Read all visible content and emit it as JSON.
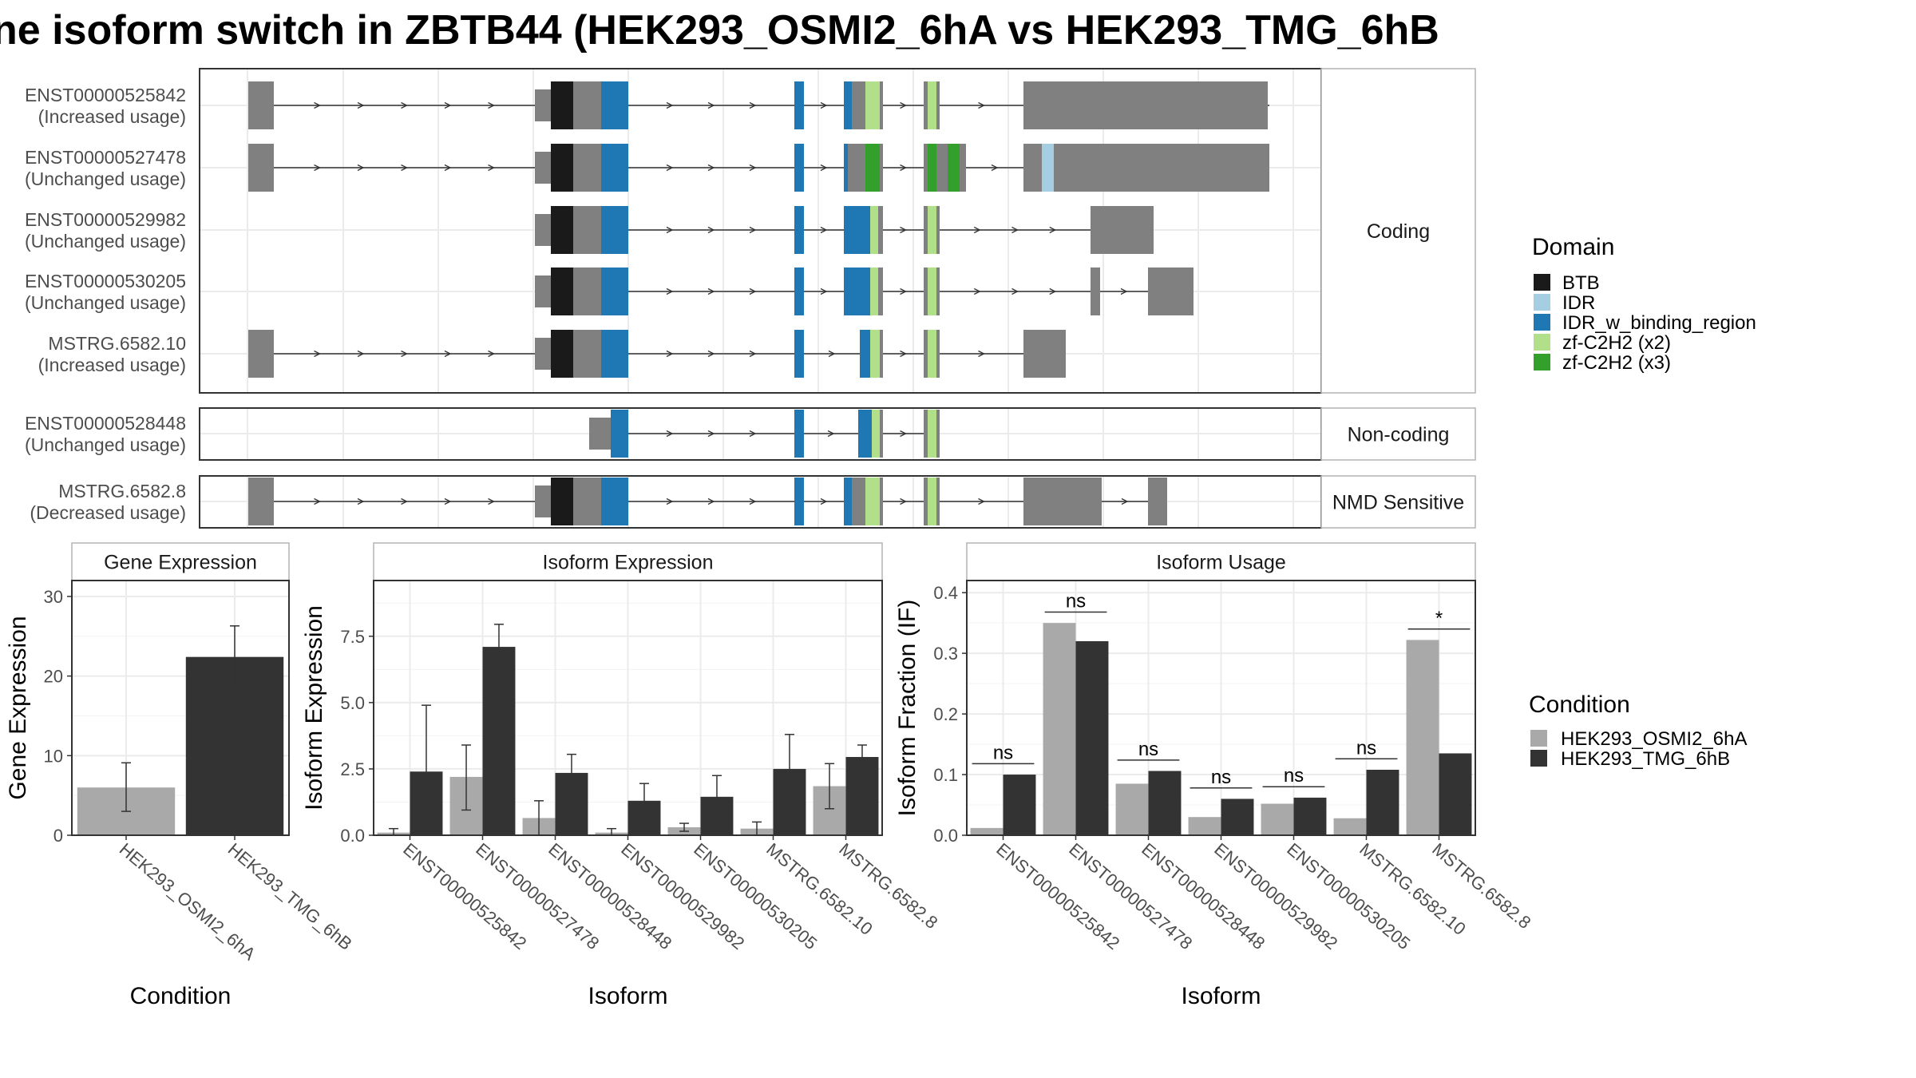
{
  "title": "ne isoform switch in ZBTB44 (HEK293_OSMI2_6hA vs HEK293_TMG_6hB",
  "colors": {
    "BTB": "#1a1a1a",
    "IDR": "#a6cee3",
    "IDR_w_binding_region": "#1f78b4",
    "zf-C2H2 (x2)": "#b2df8a",
    "zf-C2H2 (x3)": "#33a02c",
    "exon": "#808080",
    "cond_a": "#a9a9a9",
    "cond_b": "#333333"
  },
  "structure": {
    "groups": [
      {
        "label": "Coding",
        "transcripts": [
          {
            "id": "ENST00000525842",
            "status": "(Increased usage)"
          },
          {
            "id": "ENST00000527478",
            "status": "(Unchanged usage)"
          },
          {
            "id": "ENST00000529982",
            "status": "(Unchanged usage)"
          },
          {
            "id": "ENST00000530205",
            "status": "(Unchanged usage)"
          },
          {
            "id": "MSTRG.6582.10",
            "status": "(Increased usage)"
          }
        ]
      },
      {
        "label": "Non-coding",
        "transcripts": [
          {
            "id": "ENST00000528448",
            "status": "(Unchanged usage)"
          }
        ]
      },
      {
        "label": "NMD Sensitive",
        "transcripts": [
          {
            "id": "MSTRG.6582.8",
            "status": "(Decreased usage)"
          }
        ]
      }
    ]
  },
  "legend_domain": {
    "title": "Domain",
    "items": [
      "BTB",
      "IDR",
      "IDR_w_binding_region",
      "zf-C2H2 (x2)",
      "zf-C2H2 (x3)"
    ]
  },
  "legend_condition": {
    "title": "Condition",
    "items": [
      "HEK293_OSMI2_6hA",
      "HEK293_TMG_6hB"
    ]
  },
  "chart_data": [
    {
      "type": "bar",
      "title": "Gene Expression",
      "xlabel": "Condition",
      "ylabel": "Gene Expression",
      "ylim": [
        0,
        32
      ],
      "yticks": [
        0,
        10,
        20,
        30
      ],
      "categories": [
        "HEK293_OSMI2_6hA",
        "HEK293_TMG_6hB"
      ],
      "values": [
        6.0,
        22.4
      ],
      "err_low": [
        3.0,
        18.5
      ],
      "err_high": [
        9.1,
        26.3
      ]
    },
    {
      "type": "bar",
      "title": "Isoform Expression",
      "xlabel": "Isoform",
      "ylabel": "Isoform Expression",
      "ylim": [
        0,
        9.6
      ],
      "yticks": [
        "0.0",
        "2.5",
        "5.0",
        "7.5"
      ],
      "categories": [
        "ENST00000525842",
        "ENST00000527478",
        "ENST00000528448",
        "ENST00000529982",
        "ENST00000530205",
        "MSTRG.6582.10",
        "MSTRG.6582.8"
      ],
      "series": [
        {
          "name": "HEK293_OSMI2_6hA",
          "values": [
            0.1,
            2.2,
            0.65,
            0.1,
            0.3,
            0.25,
            1.85
          ],
          "err_low": [
            0.0,
            0.95,
            0.0,
            0.0,
            0.15,
            0.0,
            1.0
          ],
          "err_high": [
            0.25,
            3.4,
            1.3,
            0.25,
            0.45,
            0.5,
            2.7
          ]
        },
        {
          "name": "HEK293_TMG_6hB",
          "values": [
            2.4,
            7.1,
            2.35,
            1.3,
            1.45,
            2.5,
            2.95
          ],
          "err_low": [
            0.0,
            6.3,
            1.65,
            0.65,
            0.65,
            1.2,
            2.55
          ],
          "err_high": [
            4.9,
            7.95,
            3.05,
            1.95,
            2.25,
            3.8,
            3.4
          ]
        }
      ]
    },
    {
      "type": "bar",
      "title": "Isoform Usage",
      "xlabel": "Isoform",
      "ylabel": "Isoform Fraction (IF)",
      "ylim": [
        0,
        0.42
      ],
      "yticks": [
        "0.0",
        "0.1",
        "0.2",
        "0.3",
        "0.4"
      ],
      "categories": [
        "ENST00000525842",
        "ENST00000527478",
        "ENST00000528448",
        "ENST00000529982",
        "ENST00000530205",
        "MSTRG.6582.10",
        "MSTRG.6582.8"
      ],
      "series": [
        {
          "name": "HEK293_OSMI2_6hA",
          "values": [
            0.012,
            0.35,
            0.085,
            0.03,
            0.052,
            0.028,
            0.322
          ]
        },
        {
          "name": "HEK293_TMG_6hB",
          "values": [
            0.1,
            0.32,
            0.106,
            0.06,
            0.062,
            0.108,
            0.135
          ]
        }
      ],
      "significance": [
        "ns",
        "ns",
        "ns",
        "ns",
        "ns",
        "ns",
        "*"
      ],
      "sig_level": [
        0.118,
        0.368,
        0.124,
        0.078,
        0.08,
        0.126,
        0.34
      ]
    }
  ]
}
